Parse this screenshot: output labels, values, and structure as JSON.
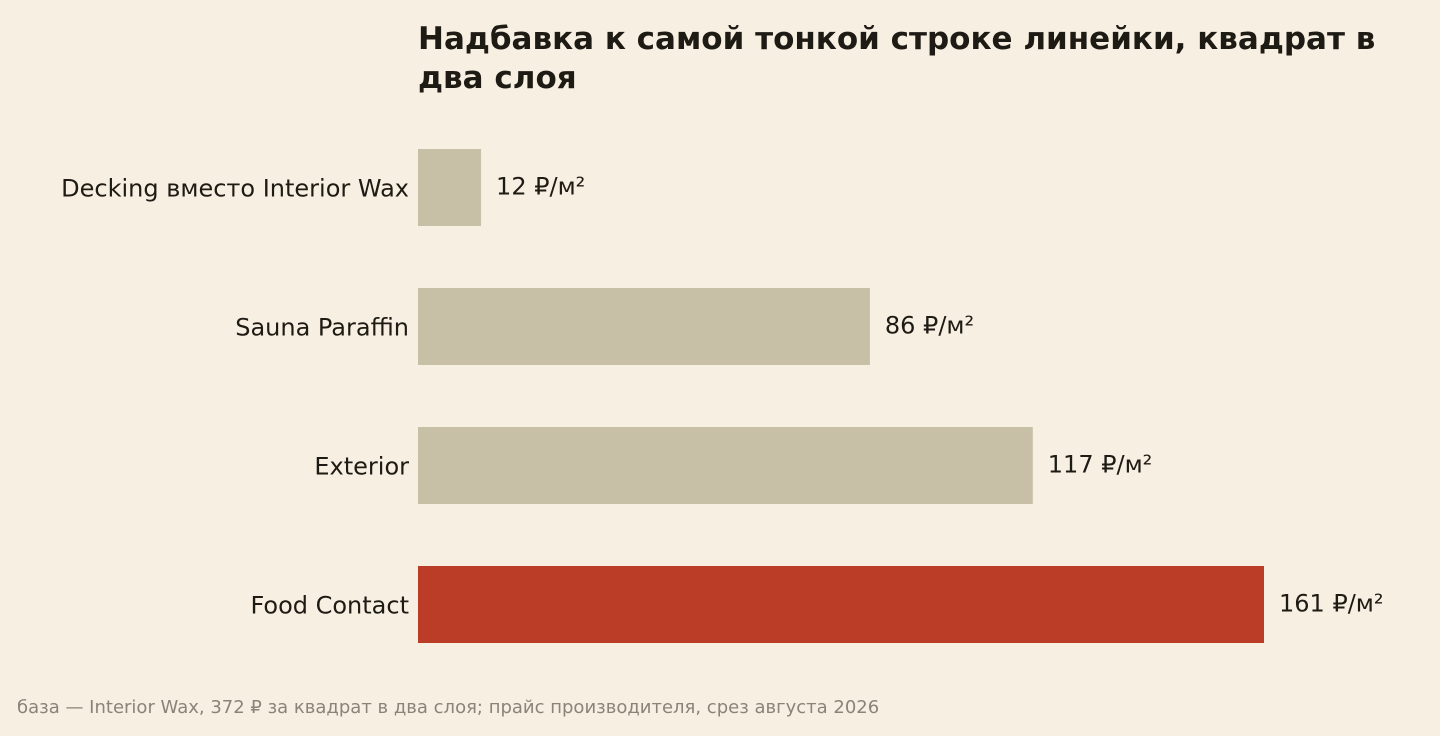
{
  "chart_data": {
    "type": "bar",
    "orientation": "horizontal",
    "title": "Надбавка к самой тонкой строке линейки, квадрат в два слоя",
    "categories": [
      "Decking вместо Interior Wax",
      "Sauna Paraffin",
      "Exterior",
      "Food Contact"
    ],
    "values": [
      12,
      86,
      117,
      161
    ],
    "value_labels": [
      "12 ₽/м²",
      "86 ₽/м²",
      "117 ₽/м²",
      "161 ₽/м²"
    ],
    "highlight_index": 3,
    "colors": {
      "bar": "#c8bfa7",
      "highlight": "#bc3d27",
      "background": "#f6efe2",
      "text": "#1e1a14",
      "footnote": "#8a8478"
    },
    "xlim": [
      0,
      161
    ],
    "grid": false,
    "legend": "none"
  },
  "footnote": "база — Interior Wax, 372 ₽ за квадрат в два слоя; прайс производителя, срез августа 2026"
}
